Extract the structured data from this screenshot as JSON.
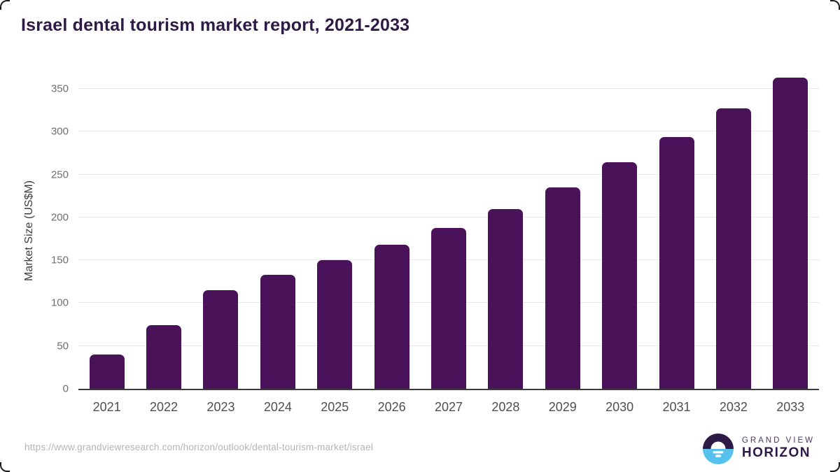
{
  "title": "Israel dental tourism market report, 2021-2033",
  "chart_data": {
    "type": "bar",
    "title": "Israel dental tourism market report, 2021-2033",
    "categories": [
      "2021",
      "2022",
      "2023",
      "2024",
      "2025",
      "2026",
      "2027",
      "2028",
      "2029",
      "2030",
      "2031",
      "2032",
      "2033"
    ],
    "values": [
      40,
      74,
      115,
      133,
      150,
      168,
      188,
      210,
      235,
      264,
      294,
      327,
      363
    ],
    "xlabel": "",
    "ylabel": "Market Size (US$M)",
    "yticks": [
      0,
      50,
      100,
      150,
      200,
      250,
      300,
      350
    ],
    "ylim": [
      0,
      372
    ],
    "grid": true,
    "legend": false,
    "bar_color": "#4a1259"
  },
  "colors": {
    "accent_purple": "#2e1a47",
    "bar_purple": "#4a1259",
    "logo_blue": "#56c1ec",
    "gridline": "#e8e8e8",
    "axis_line": "#3c3c3c"
  },
  "footer": {
    "source_url": "https://www.grandviewresearch.com/horizon/outlook/dental-tourism-market/israel",
    "logo": {
      "icon": "horizon-sun-logo",
      "line1": "GRAND VIEW",
      "line2": "HORIZON"
    }
  }
}
